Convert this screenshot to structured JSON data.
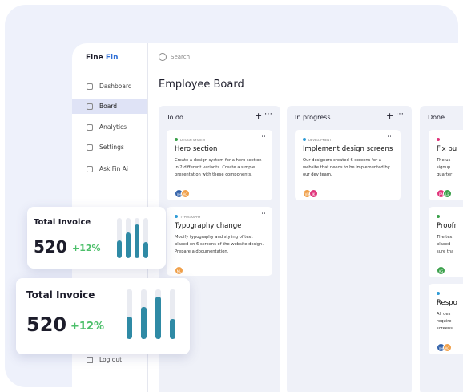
{
  "brand": {
    "first": "Fine",
    "second": "Fin"
  },
  "search": "Search",
  "title": "Employee Board",
  "sidebar": {
    "items": [
      "Dashboard",
      "Board",
      "Analytics",
      "Settings",
      "Ask Fin Ai"
    ],
    "logout": "Log out"
  },
  "columns": [
    {
      "title": "To do",
      "cards": [
        {
          "tag": "DESIGN SYSTEM",
          "title": "Hero section",
          "description": [
            "Create a design system for a hero section",
            "in 2 different variants. Create a simple",
            "presentation with these components."
          ],
          "avatars": [
            "VH",
            "AG"
          ]
        },
        {
          "tag": "TYPOGRAPHY",
          "title": "Typography change",
          "description": [
            "Modify typography and styling of text",
            "placed on 6 screens of the website design.",
            "Prepare a documentation."
          ],
          "avatars": [
            "ML"
          ]
        }
      ]
    },
    {
      "title": "In progress",
      "cards": [
        {
          "tag": "DEVELOPMENT",
          "title": "Implement design screens",
          "description": [
            "Our designers created 6 screens for a",
            "website that needs to be implemented by",
            "our dev team."
          ],
          "avatars": [
            "VH",
            "JK"
          ]
        }
      ]
    },
    {
      "title": "Done",
      "cards": [
        {
          "title": "Fix bu",
          "description": [
            "The us",
            "signup",
            "quarter"
          ],
          "avatars": [
            "PA",
            "LE"
          ]
        },
        {
          "title": "Proofr",
          "description": [
            "The tex",
            "placed",
            "sure tha"
          ],
          "avatars": [
            "AG"
          ]
        },
        {
          "title": "Respo",
          "description": [
            "All des",
            "require",
            "screens."
          ],
          "avatars": [
            "VH",
            "AG"
          ]
        }
      ]
    }
  ],
  "widgets": [
    {
      "title": "Total Invoice",
      "value": 520,
      "change": "+12%"
    },
    {
      "title": "Total Invoice",
      "value": 520,
      "change": "+12%"
    }
  ]
}
